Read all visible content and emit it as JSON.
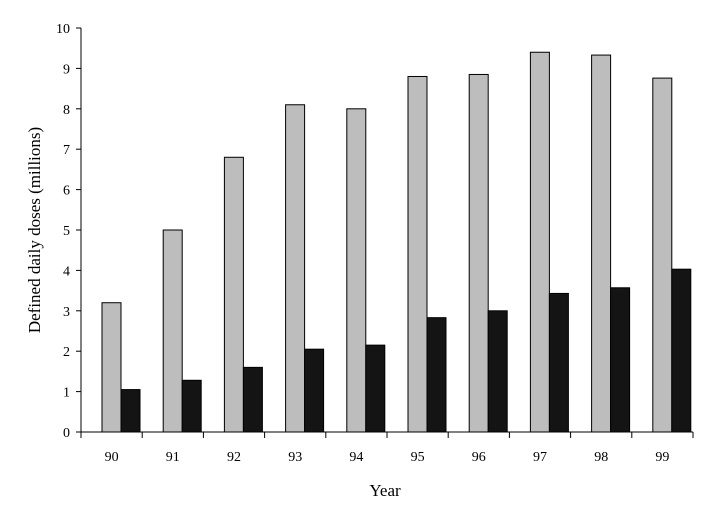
{
  "chart_data": {
    "type": "bar",
    "title": "",
    "xlabel": "Year",
    "ylabel": "Defined daily doses (millions)",
    "categories": [
      "90",
      "91",
      "92",
      "93",
      "94",
      "95",
      "96",
      "97",
      "98",
      "99"
    ],
    "ylim": [
      0,
      10
    ],
    "yticks": [
      0,
      1,
      2,
      3,
      4,
      5,
      6,
      7,
      8,
      9,
      10
    ],
    "grid": false,
    "legend": "none",
    "series": [
      {
        "color": "#bdbdbd",
        "values": [
          3.2,
          5.0,
          6.8,
          8.1,
          8.0,
          8.8,
          8.85,
          9.4,
          9.33,
          8.76
        ]
      },
      {
        "color": "#141414",
        "values": [
          1.05,
          1.28,
          1.6,
          2.05,
          2.15,
          2.83,
          3.0,
          3.43,
          3.57,
          4.03
        ]
      }
    ]
  }
}
